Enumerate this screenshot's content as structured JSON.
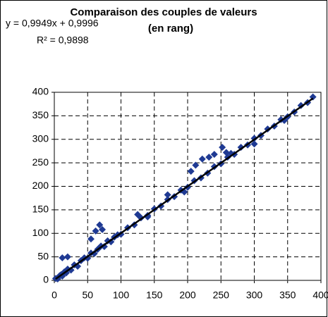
{
  "chart_data": {
    "type": "scatter",
    "title": "Comparaison des couples de valeurs",
    "subtitle": "(en rang)",
    "annotations": [
      "y = 0,9949x + 0,9996",
      "R² = 0,9898"
    ],
    "trendline": {
      "slope": 0.9949,
      "intercept": 0.9996,
      "color": "#000000"
    },
    "color": "#1f3a93",
    "xlim": [
      0,
      400
    ],
    "ylim": [
      0,
      400
    ],
    "xticks": [
      0,
      50,
      100,
      150,
      200,
      250,
      300,
      350,
      400
    ],
    "yticks": [
      0,
      50,
      100,
      150,
      200,
      250,
      300,
      350,
      400
    ],
    "grid": true,
    "x": [
      2,
      5,
      8,
      10,
      12,
      15,
      18,
      20,
      25,
      30,
      35,
      40,
      45,
      50,
      55,
      60,
      65,
      70,
      75,
      80,
      85,
      90,
      95,
      100,
      110,
      120,
      130,
      140,
      150,
      160,
      170,
      180,
      190,
      200,
      210,
      220,
      230,
      240,
      250,
      260,
      270,
      280,
      290,
      300,
      310,
      320,
      330,
      340,
      350,
      360,
      370,
      380,
      388,
      12,
      20,
      55,
      62,
      68,
      72,
      125,
      140,
      170,
      195,
      205,
      212,
      222,
      232,
      240,
      252,
      258,
      265,
      300,
      345
    ],
    "values": [
      4,
      3,
      10,
      12,
      9,
      18,
      16,
      24,
      22,
      33,
      30,
      42,
      48,
      47,
      58,
      57,
      66,
      73,
      72,
      84,
      82,
      92,
      97,
      98,
      112,
      118,
      133,
      138,
      152,
      158,
      172,
      178,
      192,
      198,
      212,
      218,
      228,
      242,
      248,
      262,
      268,
      283,
      288,
      302,
      308,
      322,
      328,
      342,
      348,
      358,
      372,
      378,
      390,
      48,
      50,
      88,
      105,
      118,
      108,
      140,
      135,
      182,
      188,
      232,
      245,
      258,
      262,
      268,
      283,
      272,
      270,
      290,
      340
    ]
  }
}
